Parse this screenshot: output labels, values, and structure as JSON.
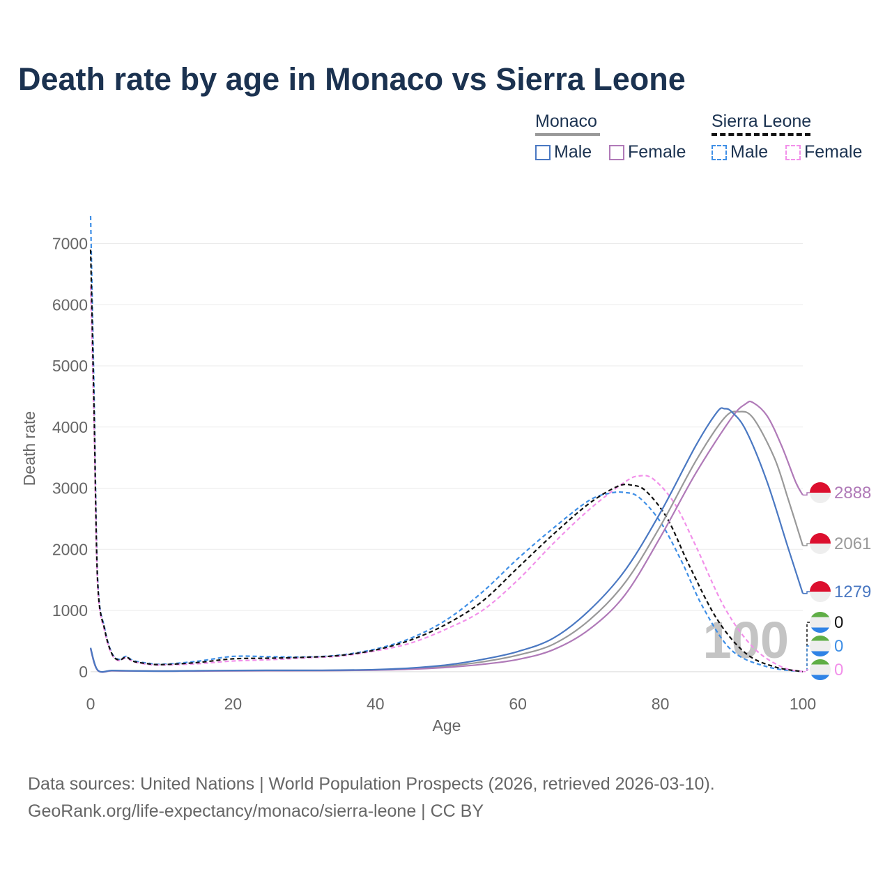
{
  "title": "Death rate by age in Monaco vs Sierra Leone",
  "legend": {
    "groups": [
      {
        "name": "Monaco",
        "line_color": "#999999",
        "line_style": "solid",
        "items": [
          {
            "label": "Male",
            "color": "#4a78c2",
            "style": "solid"
          },
          {
            "label": "Female",
            "color": "#b07ab8",
            "style": "solid"
          }
        ]
      },
      {
        "name": "Sierra Leone",
        "line_color": "#111111",
        "line_style": "dashed",
        "items": [
          {
            "label": "Male",
            "color": "#3f8fe6",
            "style": "dashed"
          },
          {
            "label": "Female",
            "color": "#f290ea",
            "style": "dashed"
          }
        ]
      }
    ]
  },
  "chart_data": {
    "type": "line",
    "title": "Death rate by age in Monaco vs Sierra Leone",
    "xlabel": "Age",
    "ylabel": "Death rate",
    "xlim": [
      0,
      100
    ],
    "ylim": [
      -150,
      7450
    ],
    "x_ticks": [
      0,
      20,
      40,
      60,
      80,
      100
    ],
    "y_ticks": [
      0,
      1000,
      2000,
      3000,
      4000,
      5000,
      6000,
      7000
    ],
    "grid": true,
    "watermark": "100",
    "series": [
      {
        "name": "Monaco Male",
        "color": "#4a78c2",
        "dash": false,
        "end_label": "1279",
        "points": [
          [
            0,
            390
          ],
          [
            1,
            25
          ],
          [
            3,
            20
          ],
          [
            5,
            15
          ],
          [
            10,
            10
          ],
          [
            15,
            15
          ],
          [
            20,
            20
          ],
          [
            25,
            22
          ],
          [
            30,
            22
          ],
          [
            35,
            25
          ],
          [
            40,
            35
          ],
          [
            45,
            60
          ],
          [
            50,
            110
          ],
          [
            55,
            200
          ],
          [
            60,
            330
          ],
          [
            65,
            550
          ],
          [
            70,
            1000
          ],
          [
            75,
            1650
          ],
          [
            80,
            2600
          ],
          [
            85,
            3700
          ],
          [
            88,
            4250
          ],
          [
            89,
            4300
          ],
          [
            90,
            4250
          ],
          [
            92,
            3950
          ],
          [
            95,
            3100
          ],
          [
            98,
            2000
          ],
          [
            100,
            1279
          ]
        ]
      },
      {
        "name": "Monaco Both",
        "color": "#999999",
        "dash": false,
        "end_label": "2061",
        "points": [
          [
            0,
            380
          ],
          [
            1,
            22
          ],
          [
            3,
            18
          ],
          [
            5,
            14
          ],
          [
            10,
            10
          ],
          [
            15,
            13
          ],
          [
            20,
            17
          ],
          [
            25,
            19
          ],
          [
            30,
            20
          ],
          [
            35,
            22
          ],
          [
            40,
            30
          ],
          [
            45,
            50
          ],
          [
            50,
            90
          ],
          [
            55,
            160
          ],
          [
            60,
            270
          ],
          [
            65,
            450
          ],
          [
            70,
            840
          ],
          [
            75,
            1450
          ],
          [
            80,
            2380
          ],
          [
            85,
            3450
          ],
          [
            89,
            4150
          ],
          [
            91,
            4250
          ],
          [
            93,
            4150
          ],
          [
            96,
            3500
          ],
          [
            98,
            2800
          ],
          [
            100,
            2061
          ]
        ]
      },
      {
        "name": "Monaco Female",
        "color": "#b07ab8",
        "dash": false,
        "end_label": "2888",
        "points": [
          [
            0,
            370
          ],
          [
            1,
            20
          ],
          [
            3,
            15
          ],
          [
            5,
            12
          ],
          [
            10,
            8
          ],
          [
            15,
            10
          ],
          [
            20,
            14
          ],
          [
            25,
            16
          ],
          [
            30,
            17
          ],
          [
            35,
            20
          ],
          [
            40,
            25
          ],
          [
            45,
            40
          ],
          [
            50,
            70
          ],
          [
            55,
            120
          ],
          [
            60,
            200
          ],
          [
            65,
            360
          ],
          [
            70,
            690
          ],
          [
            75,
            1250
          ],
          [
            80,
            2200
          ],
          [
            85,
            3250
          ],
          [
            90,
            4150
          ],
          [
            92,
            4380
          ],
          [
            93,
            4400
          ],
          [
            95,
            4180
          ],
          [
            97,
            3700
          ],
          [
            99,
            3100
          ],
          [
            100,
            2888
          ]
        ]
      },
      {
        "name": "Sierra Leone Male",
        "color": "#3f8fe6",
        "dash": true,
        "end_label": "0",
        "points": [
          [
            0,
            7450
          ],
          [
            0.5,
            4500
          ],
          [
            1,
            1500
          ],
          [
            2,
            700
          ],
          [
            3,
            300
          ],
          [
            4,
            200
          ],
          [
            5,
            250
          ],
          [
            6,
            180
          ],
          [
            8,
            140
          ],
          [
            10,
            120
          ],
          [
            15,
            170
          ],
          [
            20,
            250
          ],
          [
            25,
            245
          ],
          [
            30,
            240
          ],
          [
            35,
            270
          ],
          [
            40,
            370
          ],
          [
            45,
            550
          ],
          [
            50,
            850
          ],
          [
            55,
            1300
          ],
          [
            60,
            1850
          ],
          [
            65,
            2350
          ],
          [
            70,
            2800
          ],
          [
            73,
            2920
          ],
          [
            75,
            2930
          ],
          [
            77,
            2850
          ],
          [
            80,
            2450
          ],
          [
            83,
            1800
          ],
          [
            86,
            1050
          ],
          [
            90,
            350
          ],
          [
            95,
            80
          ],
          [
            100,
            0
          ]
        ]
      },
      {
        "name": "Sierra Leone Both",
        "color": "#111111",
        "dash": true,
        "end_label": "0",
        "points": [
          [
            0,
            6900
          ],
          [
            0.5,
            4200
          ],
          [
            1,
            1450
          ],
          [
            2,
            680
          ],
          [
            3,
            290
          ],
          [
            4,
            190
          ],
          [
            5,
            240
          ],
          [
            6,
            170
          ],
          [
            8,
            130
          ],
          [
            10,
            115
          ],
          [
            15,
            150
          ],
          [
            20,
            210
          ],
          [
            25,
            220
          ],
          [
            30,
            235
          ],
          [
            35,
            265
          ],
          [
            40,
            355
          ],
          [
            45,
            520
          ],
          [
            50,
            780
          ],
          [
            55,
            1150
          ],
          [
            60,
            1700
          ],
          [
            65,
            2250
          ],
          [
            70,
            2750
          ],
          [
            74,
            3030
          ],
          [
            76,
            3050
          ],
          [
            78,
            2950
          ],
          [
            81,
            2500
          ],
          [
            84,
            1750
          ],
          [
            88,
            850
          ],
          [
            92,
            300
          ],
          [
            96,
            80
          ],
          [
            100,
            0
          ]
        ]
      },
      {
        "name": "Sierra Leone Female",
        "color": "#f290ea",
        "dash": true,
        "end_label": "0",
        "points": [
          [
            0,
            6300
          ],
          [
            0.5,
            4000
          ],
          [
            1,
            1400
          ],
          [
            2,
            650
          ],
          [
            3,
            280
          ],
          [
            4,
            180
          ],
          [
            5,
            230
          ],
          [
            6,
            165
          ],
          [
            8,
            120
          ],
          [
            10,
            110
          ],
          [
            15,
            130
          ],
          [
            20,
            175
          ],
          [
            25,
            195
          ],
          [
            30,
            225
          ],
          [
            35,
            255
          ],
          [
            40,
            340
          ],
          [
            45,
            470
          ],
          [
            50,
            700
          ],
          [
            55,
            1000
          ],
          [
            60,
            1500
          ],
          [
            65,
            2100
          ],
          [
            70,
            2650
          ],
          [
            75,
            3100
          ],
          [
            77,
            3200
          ],
          [
            79,
            3150
          ],
          [
            82,
            2750
          ],
          [
            85,
            2050
          ],
          [
            89,
            1050
          ],
          [
            93,
            400
          ],
          [
            97,
            80
          ],
          [
            100,
            0
          ]
        ]
      }
    ]
  },
  "source": {
    "line1": "Data sources: United Nations | World Population Prospects (2026, retrieved 2026-03-10).",
    "line2": "GeoRank.org/life-expectancy/monaco/sierra-leone | CC BY"
  }
}
